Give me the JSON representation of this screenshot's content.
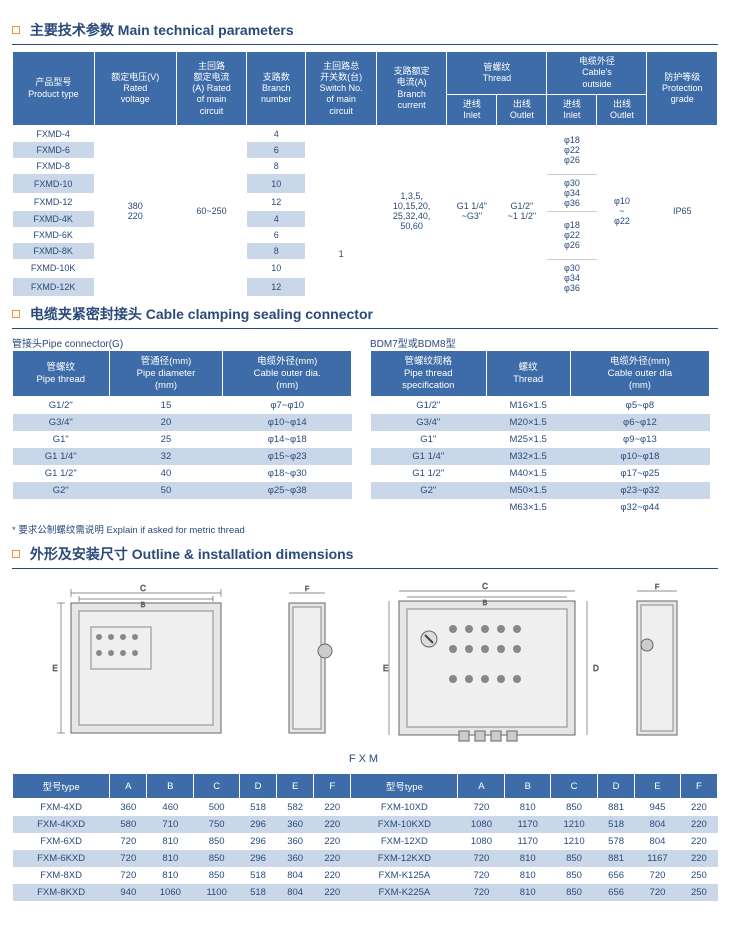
{
  "colors": {
    "header_bg": "#3d6ca8",
    "alt_row": "#c9d7e8",
    "text": "#2a4a7a",
    "accent": "#e89838"
  },
  "section1": {
    "title": "主要技术参数 Main technical parameters",
    "headers": {
      "c1": "产品型号\nProduct type",
      "c2": "额定电压(V)\nRated\nvoltage",
      "c3": "主回路\n额定电流\n(A) Rated\nof main\ncircuit",
      "c4": "支路数\nBranch\nnumber",
      "c5": "主回路总\n开关数(台)\nSwitch No.\nof main\ncircuit",
      "c6": "支路额定\n电流(A)\nBranch\ncurrent",
      "c7": "管螺纹\nThread",
      "c7a": "进线\nInlet",
      "c7b": "出线\nOutlet",
      "c8": "电缆外径\nCable's\noutside",
      "c8a": "进线\nInlet",
      "c8b": "出线\nOutlet",
      "c9": "防护等级\nProtection\ngrade"
    },
    "products": [
      "FXMD-4",
      "FXMD-6",
      "FXMD-8",
      "FXMD-10",
      "FXMD-12",
      "FXMD-4K",
      "FXMD-6K",
      "FXMD-8K",
      "FXMD-10K",
      "FXMD-12K"
    ],
    "branch": [
      "4",
      "6",
      "8",
      "10",
      "12",
      "4",
      "6",
      "8",
      "10",
      "12"
    ],
    "merged": {
      "voltage": "380\n220",
      "main_current": "60~250",
      "switch_top": "",
      "switch_bot": "1",
      "branch_current": "1,3,5,\n10,15,20,\n25,32,40,\n50,60",
      "thread_in": "G1 1/4\"\n~G3\"",
      "thread_out": "G1/2\"\n~1 1/2\"",
      "cable_in1": "φ18\nφ22\nφ26",
      "cable_in2": "φ30\nφ34\nφ36",
      "cable_in3": "φ18\nφ22\nφ26",
      "cable_in4": "φ30\nφ34\nφ36",
      "cable_out": "φ10\n~\nφ22",
      "protection": "IP65"
    }
  },
  "section2": {
    "title": "电缆夹紧密封接头 Cable clamping sealing connector",
    "left_label": "管接头Pipe connector(G)",
    "right_label": "BDM7型或BDM8型",
    "t2_headers": [
      "管螺纹\nPipe thread",
      "管通径(mm)\nPipe diameter\n(mm)",
      "电缆外径(mm)\nCable outer dia.\n(mm)"
    ],
    "t2_rows": [
      [
        "G1/2\"",
        "15",
        "φ7~φ10"
      ],
      [
        "G3/4\"",
        "20",
        "φ10~φ14"
      ],
      [
        "G1\"",
        "25",
        "φ14~φ18"
      ],
      [
        "G1 1/4\"",
        "32",
        "φ15~φ23"
      ],
      [
        "G1 1/2\"",
        "40",
        "φ18~φ30"
      ],
      [
        "G2\"",
        "50",
        "φ25~φ38"
      ]
    ],
    "t3_headers": [
      "管螺纹规格\nPipe thread\nspecification",
      "螺纹\nThread",
      "电缆外径(mm)\nCable outer dia\n(mm)"
    ],
    "t3_rows": [
      [
        "G1/2\"",
        "M16×1.5",
        "φ5~φ8"
      ],
      [
        "G3/4\"",
        "M20×1.5",
        "φ6~φ12"
      ],
      [
        "G1\"",
        "M25×1.5",
        "φ9~φ13"
      ],
      [
        "G1 1/4\"",
        "M32×1.5",
        "φ10~φ18"
      ],
      [
        "G1 1/2\"",
        "M40×1.5",
        "φ17~φ25"
      ],
      [
        "G2\"",
        "M50×1.5",
        "φ23~φ32"
      ],
      [
        "",
        "M63×1.5",
        "φ32~φ44"
      ]
    ],
    "note": "* 要求公制螺纹需说明  Explain if asked for metric thread"
  },
  "section3": {
    "title": "外形及安装尺寸 Outline & installation dimensions",
    "diagram_label": "FXM",
    "t4_headers": [
      "型号type",
      "A",
      "B",
      "C",
      "D",
      "E",
      "F",
      "型号type",
      "A",
      "B",
      "C",
      "D",
      "E",
      "F"
    ],
    "t4_rows": [
      [
        "FXM-4XD",
        "360",
        "460",
        "500",
        "518",
        "582",
        "220",
        "FXM-10XD",
        "720",
        "810",
        "850",
        "881",
        "945",
        "220"
      ],
      [
        "FXM-4KXD",
        "580",
        "710",
        "750",
        "296",
        "360",
        "220",
        "FXM-10KXD",
        "1080",
        "1170",
        "1210",
        "518",
        "804",
        "220"
      ],
      [
        "FXM-6XD",
        "720",
        "810",
        "850",
        "296",
        "360",
        "220",
        "FXM-12XD",
        "1080",
        "1170",
        "1210",
        "578",
        "804",
        "220"
      ],
      [
        "FXM-6KXD",
        "720",
        "810",
        "850",
        "296",
        "360",
        "220",
        "FXM-12KXD",
        "720",
        "810",
        "850",
        "881",
        "1167",
        "220"
      ],
      [
        "FXM-8XD",
        "720",
        "810",
        "850",
        "518",
        "804",
        "220",
        "FXM-K125A",
        "720",
        "810",
        "850",
        "656",
        "720",
        "250"
      ],
      [
        "FXM-8KXD",
        "940",
        "1060",
        "1100",
        "518",
        "804",
        "220",
        "FXM-K225A",
        "720",
        "810",
        "850",
        "656",
        "720",
        "250"
      ]
    ]
  }
}
